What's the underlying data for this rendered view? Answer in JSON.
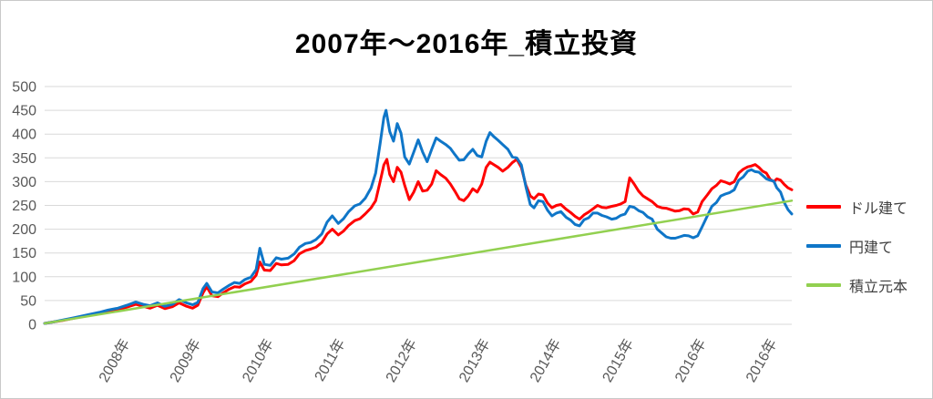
{
  "styles": {
    "gridline_color": "#d9d9d9",
    "tick_label_color": "#595959",
    "title_color": "#000000",
    "legend_text_color": "#3f3f3f",
    "background": "#ffffff"
  },
  "chart_data": {
    "type": "line",
    "title": "2007年～2016年_積立投資",
    "xlabel": "",
    "ylabel": "",
    "grid": "horizontal",
    "legend_position": "right",
    "y_axis": {
      "min": 0,
      "max": 500,
      "tick_interval": 50,
      "ticks": [
        0,
        50,
        100,
        150,
        200,
        250,
        300,
        350,
        400,
        450,
        500
      ]
    },
    "x_axis": {
      "ticks": [
        {
          "label": "2008年",
          "pos": 0.106
        },
        {
          "label": "2009年",
          "pos": 0.201
        },
        {
          "label": "2010年",
          "pos": 0.298
        },
        {
          "label": "2011年",
          "pos": 0.394
        },
        {
          "label": "2012年",
          "pos": 0.49
        },
        {
          "label": "2013年",
          "pos": 0.588
        },
        {
          "label": "2014年",
          "pos": 0.683
        },
        {
          "label": "2015年",
          "pos": 0.78
        },
        {
          "label": "2016年",
          "pos": 0.877
        },
        {
          "label": "2016年",
          "pos": 0.972
        }
      ]
    },
    "series": [
      {
        "name": "ドル建て",
        "color": "#ff0000",
        "points": [
          [
            0,
            2
          ],
          [
            0.012,
            5
          ],
          [
            0.024,
            8
          ],
          [
            0.037,
            12
          ],
          [
            0.049,
            16
          ],
          [
            0.061,
            20
          ],
          [
            0.073,
            23
          ],
          [
            0.085,
            28
          ],
          [
            0.098,
            31
          ],
          [
            0.11,
            36
          ],
          [
            0.122,
            42
          ],
          [
            0.132,
            38
          ],
          [
            0.141,
            34
          ],
          [
            0.151,
            40
          ],
          [
            0.161,
            33
          ],
          [
            0.171,
            37
          ],
          [
            0.18,
            45
          ],
          [
            0.19,
            38
          ],
          [
            0.198,
            34
          ],
          [
            0.205,
            40
          ],
          [
            0.212,
            66
          ],
          [
            0.217,
            79
          ],
          [
            0.224,
            60
          ],
          [
            0.232,
            58
          ],
          [
            0.239,
            66
          ],
          [
            0.246,
            73
          ],
          [
            0.254,
            79
          ],
          [
            0.261,
            78
          ],
          [
            0.268,
            85
          ],
          [
            0.276,
            90
          ],
          [
            0.283,
            103
          ],
          [
            0.288,
            131
          ],
          [
            0.294,
            114
          ],
          [
            0.302,
            113
          ],
          [
            0.31,
            128
          ],
          [
            0.317,
            125
          ],
          [
            0.326,
            126
          ],
          [
            0.334,
            134
          ],
          [
            0.341,
            148
          ],
          [
            0.349,
            155
          ],
          [
            0.356,
            158
          ],
          [
            0.363,
            162
          ],
          [
            0.371,
            172
          ],
          [
            0.378,
            190
          ],
          [
            0.385,
            200
          ],
          [
            0.393,
            188
          ],
          [
            0.4,
            196
          ],
          [
            0.407,
            208
          ],
          [
            0.415,
            218
          ],
          [
            0.422,
            222
          ],
          [
            0.429,
            232
          ],
          [
            0.437,
            245
          ],
          [
            0.443,
            260
          ],
          [
            0.449,
            300
          ],
          [
            0.454,
            335
          ],
          [
            0.458,
            347
          ],
          [
            0.462,
            315
          ],
          [
            0.467,
            300
          ],
          [
            0.472,
            330
          ],
          [
            0.477,
            320
          ],
          [
            0.482,
            292
          ],
          [
            0.488,
            262
          ],
          [
            0.494,
            278
          ],
          [
            0.5,
            300
          ],
          [
            0.506,
            280
          ],
          [
            0.512,
            282
          ],
          [
            0.518,
            295
          ],
          [
            0.524,
            323
          ],
          [
            0.53,
            315
          ],
          [
            0.537,
            307
          ],
          [
            0.543,
            295
          ],
          [
            0.549,
            280
          ],
          [
            0.555,
            264
          ],
          [
            0.561,
            260
          ],
          [
            0.567,
            270
          ],
          [
            0.573,
            285
          ],
          [
            0.579,
            278
          ],
          [
            0.585,
            295
          ],
          [
            0.591,
            330
          ],
          [
            0.596,
            341
          ],
          [
            0.601,
            336
          ],
          [
            0.607,
            330
          ],
          [
            0.613,
            322
          ],
          [
            0.62,
            330
          ],
          [
            0.626,
            340
          ],
          [
            0.632,
            347
          ],
          [
            0.638,
            330
          ],
          [
            0.644,
            293
          ],
          [
            0.65,
            270
          ],
          [
            0.655,
            264
          ],
          [
            0.661,
            274
          ],
          [
            0.667,
            272
          ],
          [
            0.673,
            255
          ],
          [
            0.679,
            245
          ],
          [
            0.685,
            250
          ],
          [
            0.691,
            252
          ],
          [
            0.698,
            242
          ],
          [
            0.704,
            235
          ],
          [
            0.71,
            227
          ],
          [
            0.716,
            221
          ],
          [
            0.722,
            230
          ],
          [
            0.728,
            236
          ],
          [
            0.734,
            243
          ],
          [
            0.74,
            250
          ],
          [
            0.746,
            246
          ],
          [
            0.752,
            245
          ],
          [
            0.759,
            248
          ],
          [
            0.765,
            250
          ],
          [
            0.771,
            253
          ],
          [
            0.777,
            258
          ],
          [
            0.783,
            308
          ],
          [
            0.789,
            295
          ],
          [
            0.795,
            280
          ],
          [
            0.801,
            270
          ],
          [
            0.807,
            264
          ],
          [
            0.813,
            258
          ],
          [
            0.82,
            248
          ],
          [
            0.826,
            245
          ],
          [
            0.832,
            244
          ],
          [
            0.838,
            241
          ],
          [
            0.844,
            238
          ],
          [
            0.85,
            239
          ],
          [
            0.856,
            243
          ],
          [
            0.862,
            242
          ],
          [
            0.868,
            232
          ],
          [
            0.874,
            236
          ],
          [
            0.88,
            258
          ],
          [
            0.887,
            272
          ],
          [
            0.893,
            285
          ],
          [
            0.899,
            292
          ],
          [
            0.905,
            302
          ],
          [
            0.911,
            299
          ],
          [
            0.917,
            295
          ],
          [
            0.923,
            300
          ],
          [
            0.929,
            318
          ],
          [
            0.935,
            326
          ],
          [
            0.941,
            331
          ],
          [
            0.946,
            333
          ],
          [
            0.951,
            336
          ],
          [
            0.956,
            330
          ],
          [
            0.961,
            322
          ],
          [
            0.966,
            318
          ],
          [
            0.971,
            305
          ],
          [
            0.976,
            300
          ],
          [
            0.98,
            306
          ],
          [
            0.985,
            303
          ],
          [
            0.99,
            294
          ],
          [
            0.995,
            287
          ],
          [
            1,
            283
          ]
        ]
      },
      {
        "name": "円建て",
        "color": "#0f76c8",
        "points": [
          [
            0,
            2
          ],
          [
            0.012,
            5
          ],
          [
            0.024,
            9
          ],
          [
            0.037,
            13
          ],
          [
            0.049,
            17
          ],
          [
            0.061,
            21
          ],
          [
            0.073,
            25
          ],
          [
            0.085,
            30
          ],
          [
            0.098,
            34
          ],
          [
            0.11,
            40
          ],
          [
            0.122,
            47
          ],
          [
            0.132,
            42
          ],
          [
            0.141,
            39
          ],
          [
            0.151,
            45
          ],
          [
            0.161,
            38
          ],
          [
            0.171,
            42
          ],
          [
            0.18,
            52
          ],
          [
            0.19,
            45
          ],
          [
            0.198,
            41
          ],
          [
            0.205,
            46
          ],
          [
            0.212,
            75
          ],
          [
            0.217,
            86
          ],
          [
            0.224,
            68
          ],
          [
            0.232,
            66
          ],
          [
            0.239,
            74
          ],
          [
            0.246,
            81
          ],
          [
            0.254,
            88
          ],
          [
            0.261,
            86
          ],
          [
            0.268,
            94
          ],
          [
            0.276,
            99
          ],
          [
            0.283,
            115
          ],
          [
            0.288,
            160
          ],
          [
            0.294,
            126
          ],
          [
            0.302,
            124
          ],
          [
            0.31,
            140
          ],
          [
            0.317,
            137
          ],
          [
            0.326,
            139
          ],
          [
            0.334,
            148
          ],
          [
            0.341,
            162
          ],
          [
            0.349,
            170
          ],
          [
            0.356,
            172
          ],
          [
            0.363,
            178
          ],
          [
            0.371,
            190
          ],
          [
            0.378,
            215
          ],
          [
            0.385,
            228
          ],
          [
            0.393,
            212
          ],
          [
            0.4,
            222
          ],
          [
            0.407,
            237
          ],
          [
            0.415,
            249
          ],
          [
            0.422,
            253
          ],
          [
            0.429,
            265
          ],
          [
            0.437,
            287
          ],
          [
            0.443,
            318
          ],
          [
            0.449,
            380
          ],
          [
            0.454,
            435
          ],
          [
            0.457,
            450
          ],
          [
            0.462,
            405
          ],
          [
            0.467,
            385
          ],
          [
            0.472,
            422
          ],
          [
            0.477,
            402
          ],
          [
            0.482,
            352
          ],
          [
            0.488,
            337
          ],
          [
            0.494,
            362
          ],
          [
            0.5,
            388
          ],
          [
            0.506,
            362
          ],
          [
            0.512,
            342
          ],
          [
            0.518,
            368
          ],
          [
            0.524,
            392
          ],
          [
            0.53,
            385
          ],
          [
            0.537,
            378
          ],
          [
            0.543,
            370
          ],
          [
            0.549,
            357
          ],
          [
            0.555,
            345
          ],
          [
            0.561,
            346
          ],
          [
            0.567,
            358
          ],
          [
            0.573,
            368
          ],
          [
            0.579,
            355
          ],
          [
            0.585,
            352
          ],
          [
            0.591,
            385
          ],
          [
            0.596,
            403
          ],
          [
            0.601,
            395
          ],
          [
            0.607,
            387
          ],
          [
            0.613,
            378
          ],
          [
            0.62,
            368
          ],
          [
            0.626,
            352
          ],
          [
            0.632,
            350
          ],
          [
            0.638,
            335
          ],
          [
            0.644,
            290
          ],
          [
            0.65,
            252
          ],
          [
            0.655,
            245
          ],
          [
            0.661,
            260
          ],
          [
            0.667,
            258
          ],
          [
            0.673,
            240
          ],
          [
            0.679,
            228
          ],
          [
            0.685,
            234
          ],
          [
            0.691,
            237
          ],
          [
            0.698,
            225
          ],
          [
            0.704,
            219
          ],
          [
            0.71,
            210
          ],
          [
            0.716,
            207
          ],
          [
            0.722,
            220
          ],
          [
            0.728,
            224
          ],
          [
            0.734,
            234
          ],
          [
            0.74,
            234
          ],
          [
            0.746,
            229
          ],
          [
            0.752,
            226
          ],
          [
            0.759,
            221
          ],
          [
            0.765,
            223
          ],
          [
            0.771,
            229
          ],
          [
            0.777,
            232
          ],
          [
            0.783,
            248
          ],
          [
            0.789,
            246
          ],
          [
            0.795,
            239
          ],
          [
            0.801,
            235
          ],
          [
            0.807,
            226
          ],
          [
            0.813,
            221
          ],
          [
            0.82,
            200
          ],
          [
            0.826,
            192
          ],
          [
            0.832,
            184
          ],
          [
            0.838,
            181
          ],
          [
            0.844,
            181
          ],
          [
            0.85,
            184
          ],
          [
            0.856,
            187
          ],
          [
            0.862,
            186
          ],
          [
            0.868,
            182
          ],
          [
            0.874,
            186
          ],
          [
            0.88,
            205
          ],
          [
            0.887,
            228
          ],
          [
            0.893,
            248
          ],
          [
            0.899,
            256
          ],
          [
            0.905,
            270
          ],
          [
            0.911,
            274
          ],
          [
            0.917,
            277
          ],
          [
            0.923,
            283
          ],
          [
            0.929,
            303
          ],
          [
            0.935,
            310
          ],
          [
            0.941,
            322
          ],
          [
            0.946,
            325
          ],
          [
            0.951,
            321
          ],
          [
            0.956,
            320
          ],
          [
            0.961,
            313
          ],
          [
            0.966,
            306
          ],
          [
            0.971,
            303
          ],
          [
            0.976,
            301
          ],
          [
            0.98,
            287
          ],
          [
            0.985,
            278
          ],
          [
            0.99,
            256
          ],
          [
            0.995,
            241
          ],
          [
            1,
            232
          ]
        ]
      },
      {
        "name": "積立元本",
        "color": "#92d050",
        "points": [
          [
            0,
            2
          ],
          [
            1,
            260
          ]
        ]
      }
    ]
  }
}
